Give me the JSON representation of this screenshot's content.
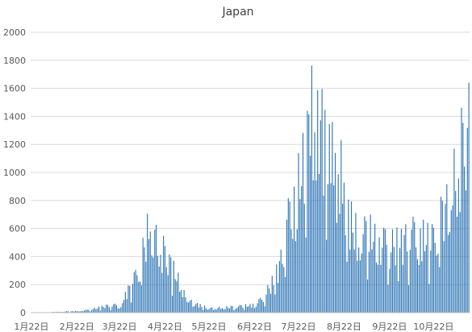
{
  "chart_data": {
    "type": "bar",
    "title": "Japan",
    "xlabel": "",
    "ylabel": "",
    "ylim": [
      0,
      2000
    ],
    "yticks": [
      0,
      200,
      400,
      600,
      800,
      1000,
      1200,
      1400,
      1600,
      1800,
      2000
    ],
    "x_tick_labels": [
      "1月22日",
      "2月22日",
      "3月22日",
      "4月22日",
      "5月22日",
      "6月22日",
      "7月22日",
      "8月22日",
      "9月22日",
      "10月22日"
    ],
    "grid": true,
    "legend": "none",
    "bar_color": "#2e75b6",
    "series": [
      {
        "key_points": [
          [
            "1月22日",
            0
          ],
          [
            "2月1日",
            3
          ],
          [
            "2月22日",
            12
          ],
          [
            "3月1日",
            20
          ],
          [
            "3月10日",
            45
          ],
          [
            "3月18日",
            60
          ],
          [
            "3月22日",
            40
          ],
          [
            "3月28日",
            180
          ],
          [
            "4月1日",
            250
          ],
          [
            "4月5日",
            350
          ],
          [
            "4月10日",
            620
          ],
          [
            "4月12日",
            700
          ],
          [
            "4月16日",
            560
          ],
          [
            "4月22日",
            450
          ],
          [
            "4月26日",
            380
          ],
          [
            "5月1日",
            250
          ],
          [
            "5月5日",
            150
          ],
          [
            "5月10日",
            80
          ],
          [
            "5月22日",
            30
          ],
          [
            "6月1日",
            40
          ],
          [
            "6月10日",
            45
          ],
          [
            "6月22日",
            60
          ],
          [
            "6月28日",
            110
          ],
          [
            "7月5日",
            250
          ],
          [
            "7月10日",
            400
          ],
          [
            "7月15日",
            700
          ],
          [
            "7月20日",
            900
          ],
          [
            "7月22日",
            1000
          ],
          [
            "7月29日",
            1300
          ],
          [
            "8月1日",
            1450
          ],
          [
            "8月5日",
            1550
          ],
          [
            "8月10日",
            1200
          ],
          [
            "8月14日",
            1100
          ],
          [
            "8月20日",
            900
          ],
          [
            "8月22日",
            800
          ],
          [
            "9月1日",
            600
          ],
          [
            "9月10日",
            600
          ],
          [
            "9月22日",
            500
          ],
          [
            "10月1日",
            550
          ],
          [
            "10月10日",
            600
          ],
          [
            "10月22日",
            550
          ],
          [
            "10月29日",
            800
          ],
          [
            "11月5日",
            1000
          ],
          [
            "11月10日",
            1250
          ],
          [
            "11月15日",
            1500
          ]
        ],
        "peaks": [
          [
            "7月31日",
            1762
          ],
          [
            "8月7日",
            1595
          ],
          [
            "8月14日",
            1360
          ],
          [
            "8月20日",
            1230
          ],
          [
            "11月15日",
            1640
          ]
        ]
      }
    ]
  }
}
